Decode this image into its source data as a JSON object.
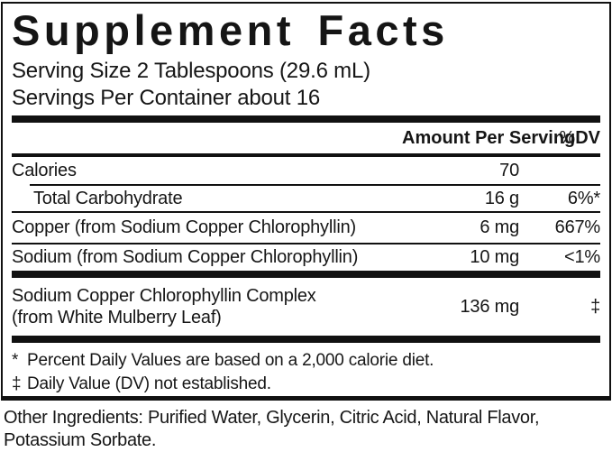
{
  "panel": {
    "title": "Supplement Facts",
    "serving_size": "Serving Size 2 Tablespoons (29.6 mL)",
    "servings_per_container": "Servings Per Container about 16",
    "header": {
      "amount": "Amount Per Serving",
      "percent": "%",
      "dv": "DV"
    },
    "rows": [
      {
        "name": "Calories",
        "amount": "70",
        "dv": ""
      },
      {
        "name": "Total Carbohydrate",
        "amount": "16 g",
        "dv": "6%*"
      },
      {
        "name": "Copper (from Sodium Copper Chlorophyllin)",
        "amount": "6 mg",
        "dv": "667%"
      },
      {
        "name": "Sodium (from Sodium Copper Chlorophyllin)",
        "amount": "10 mg",
        "dv": "<1%"
      },
      {
        "name_line1": "Sodium Copper Chlorophyllin Complex",
        "name_line2": "(from White Mulberry Leaf)",
        "amount": "136 mg",
        "dv": "‡"
      }
    ],
    "footnotes": [
      {
        "marker": "*",
        "text": "Percent Daily Values are based on a 2,000 calorie diet."
      },
      {
        "marker": "‡",
        "text": "Daily Value (DV) not established."
      }
    ]
  },
  "other_ingredients": {
    "line1": "Other Ingredients: Purified Water, Glycerin, Citric Acid, Natural Flavor,",
    "line2": "Potassium Sorbate."
  },
  "colors": {
    "text": "#161616",
    "rule": "#111111",
    "background": "#ffffff"
  }
}
